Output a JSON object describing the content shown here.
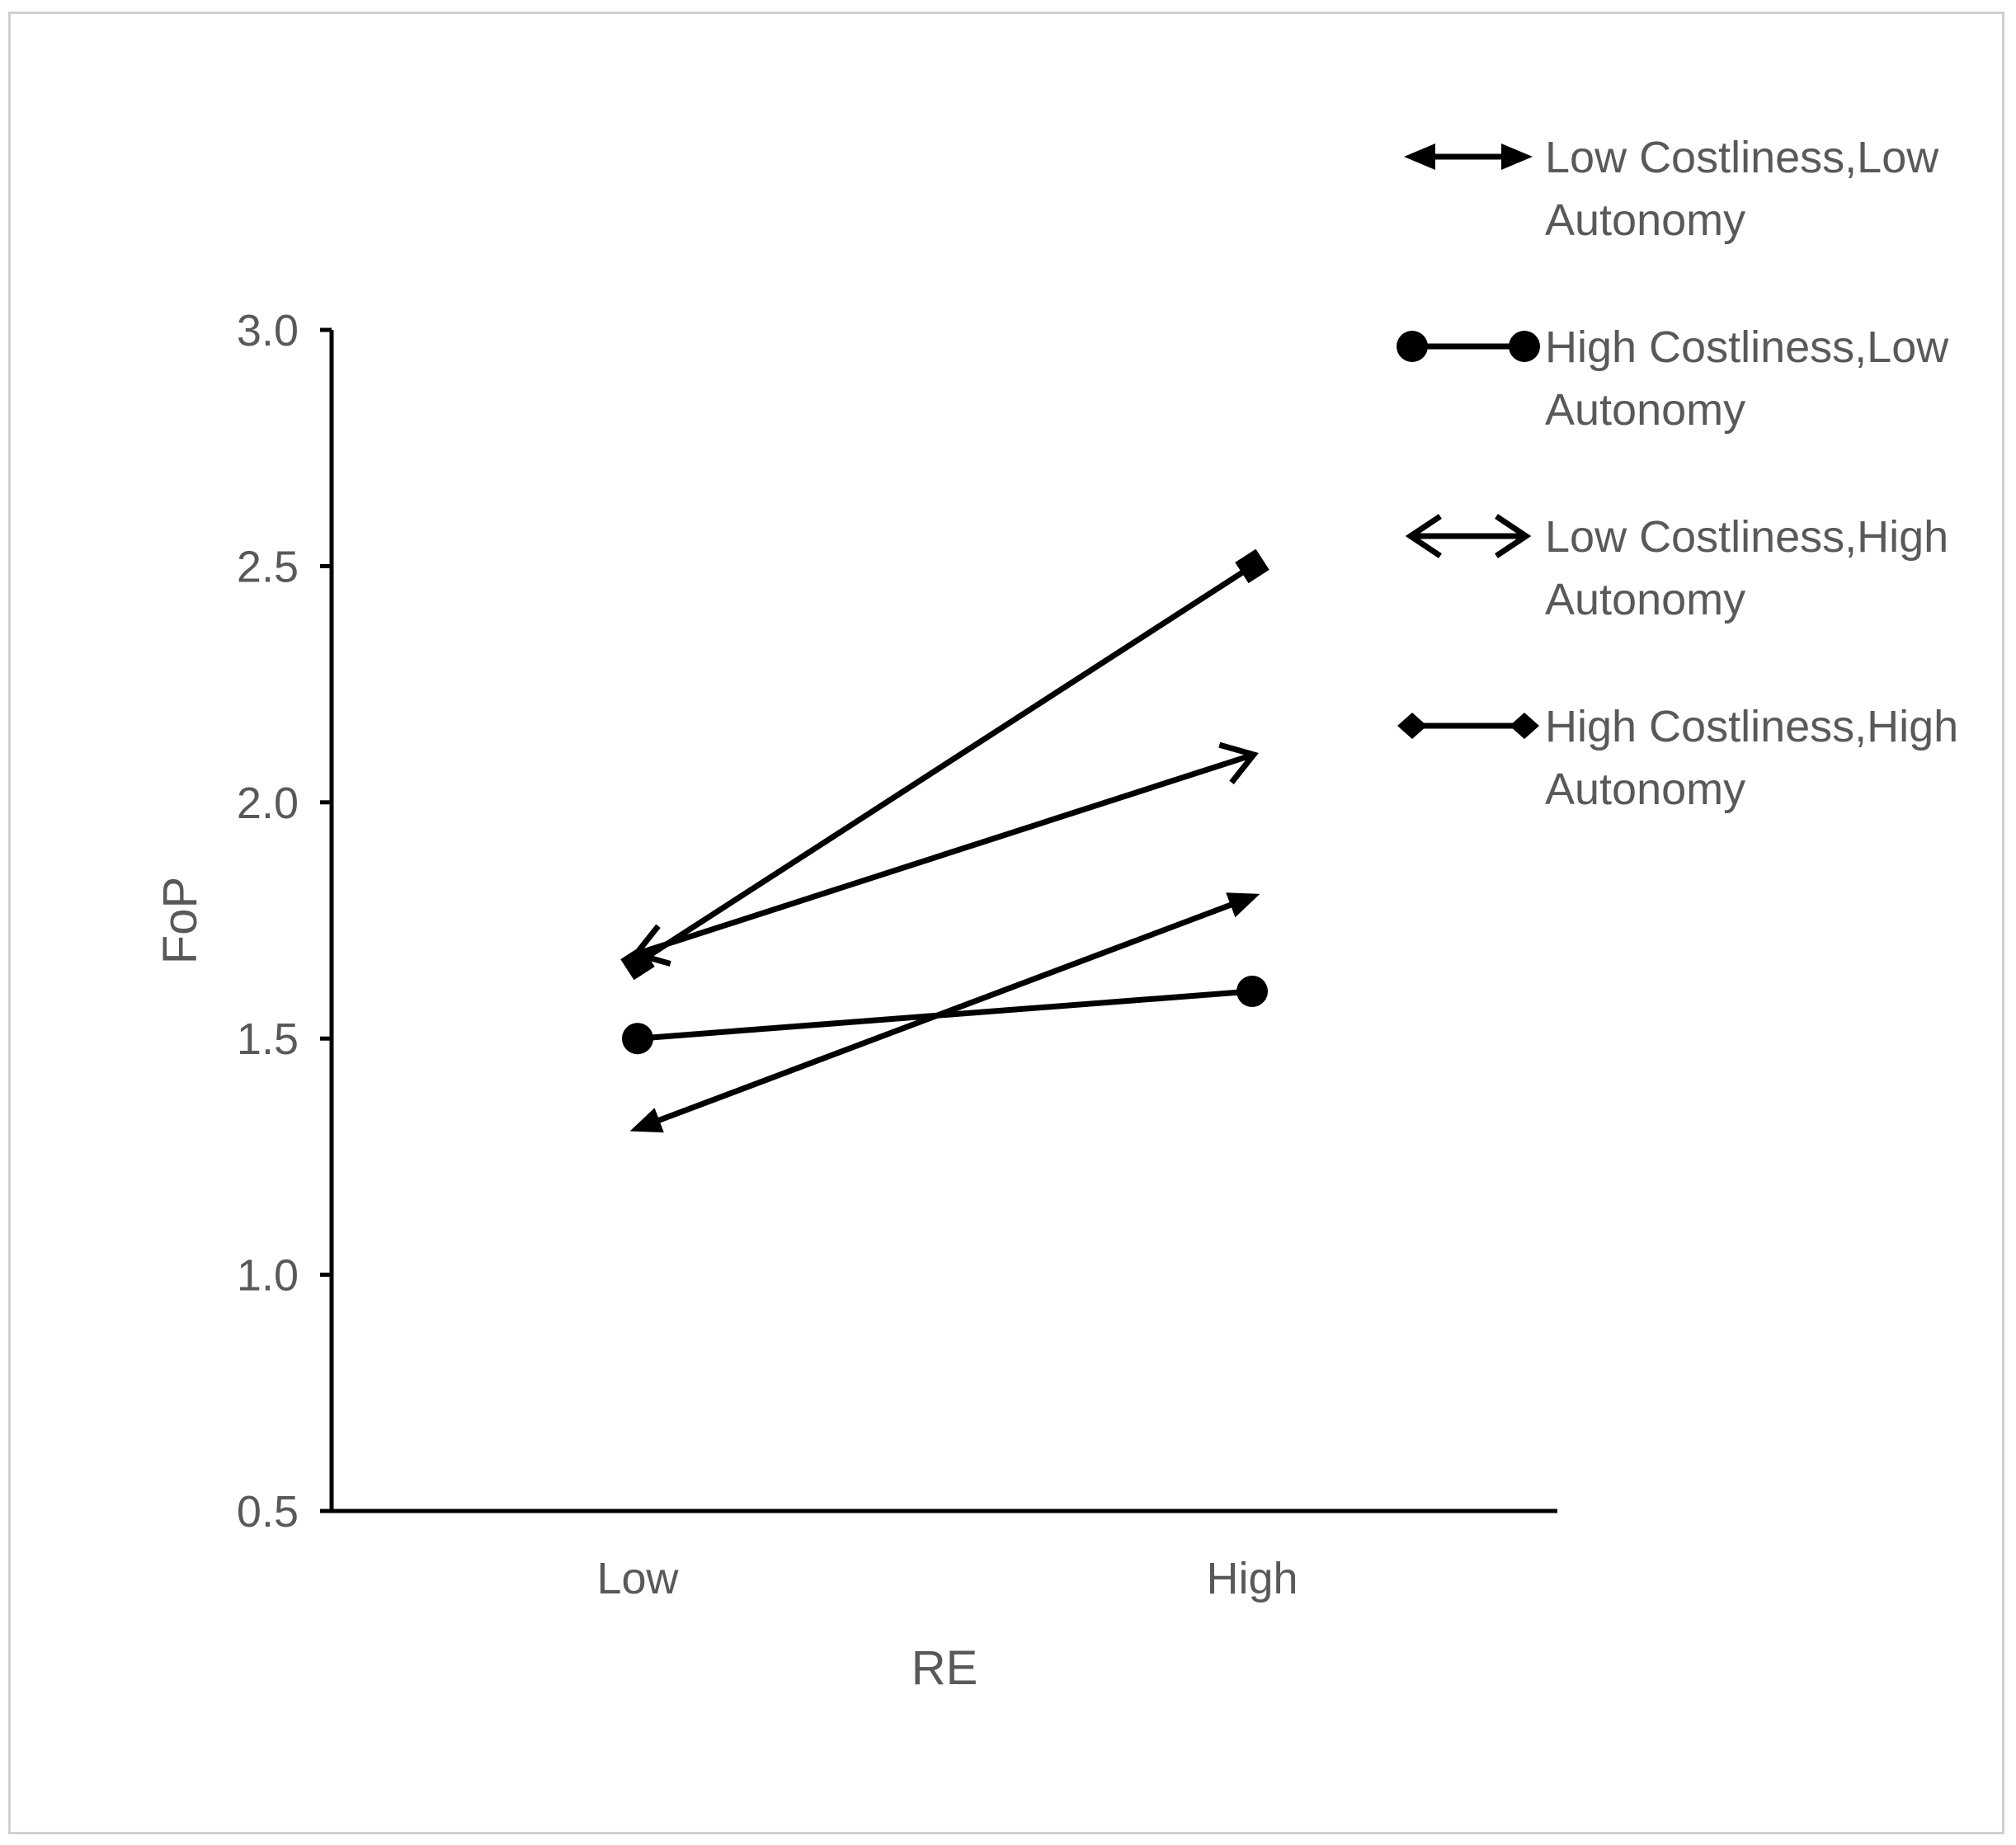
{
  "chart_data": {
    "type": "line",
    "xlabel": "RE",
    "ylabel": "FoP",
    "categories": [
      "Low",
      "High"
    ],
    "ylim": [
      0.5,
      3.0
    ],
    "yticks": [
      "0.5",
      "1.0",
      "1.5",
      "2.0",
      "2.5",
      "3.0"
    ],
    "grid": false,
    "legend_position": "top-right",
    "series": [
      {
        "name": "Low Costliness,Low Autonomy",
        "name_lines": [
          "Low Costliness,Low",
          "Autonomy"
        ],
        "marker": "arrow-filled",
        "values": [
          1.31,
          1.8
        ]
      },
      {
        "name": "High Costliness,Low Autonomy",
        "name_lines": [
          "High Costliness,Low",
          "Autonomy"
        ],
        "marker": "circle",
        "values": [
          1.5,
          1.6
        ]
      },
      {
        "name": "Low Costliness,High Autonomy",
        "name_lines": [
          "Low Costliness,High",
          "Autonomy"
        ],
        "marker": "arrow-open",
        "values": [
          1.68,
          2.1
        ]
      },
      {
        "name": "High Costliness,High Autonomy",
        "name_lines": [
          "High Costliness,High",
          "Autonomy"
        ],
        "marker": "square",
        "values": [
          1.66,
          2.5
        ]
      }
    ],
    "line_color": "#000000"
  }
}
